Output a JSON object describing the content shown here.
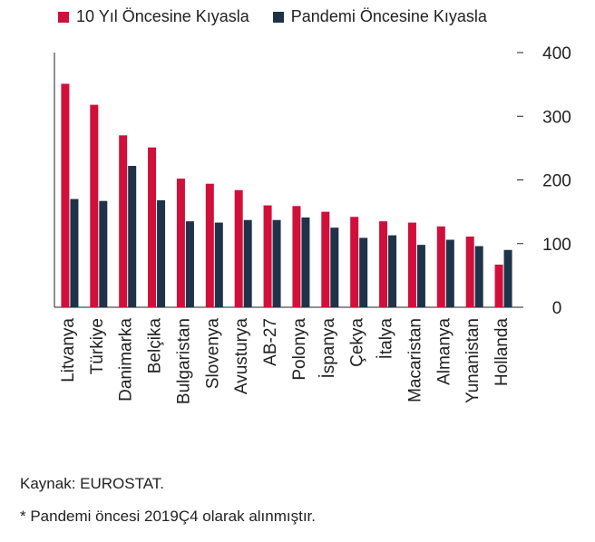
{
  "chart_data": {
    "type": "bar",
    "categories": [
      "Litvanya",
      "Türkiye",
      "Danimarka",
      "Belçika",
      "Bulgaristan",
      "Slovenya",
      "Avusturya",
      "AB-27",
      "Polonya",
      "İspanya",
      "Çekya",
      "İtalya",
      "Macaristan",
      "Almanya",
      "Yunanistan",
      "Hollanda"
    ],
    "series": [
      {
        "name": "10 Yıl Öncesine Kıyasla",
        "color": "#d0103a",
        "values": [
          351,
          318,
          270,
          251,
          202,
          194,
          184,
          160,
          159,
          150,
          142,
          135,
          133,
          127,
          111,
          67
        ]
      },
      {
        "name": "Pandemi Öncesine Kıyasla",
        "color": "#1e3348",
        "values": [
          170,
          167,
          222,
          168,
          135,
          133,
          137,
          137,
          141,
          125,
          109,
          113,
          98,
          106,
          96,
          90
        ]
      }
    ],
    "ylim": [
      0,
      400
    ],
    "yticks": [
      0,
      100,
      200,
      300,
      400
    ],
    "y_axis_position": "right",
    "grid": false,
    "legend_position": "top"
  },
  "footnotes": {
    "source": "Kaynak: EUROSTAT.",
    "note": "* Pandemi öncesi 2019Ç4 olarak alınmıştır."
  }
}
